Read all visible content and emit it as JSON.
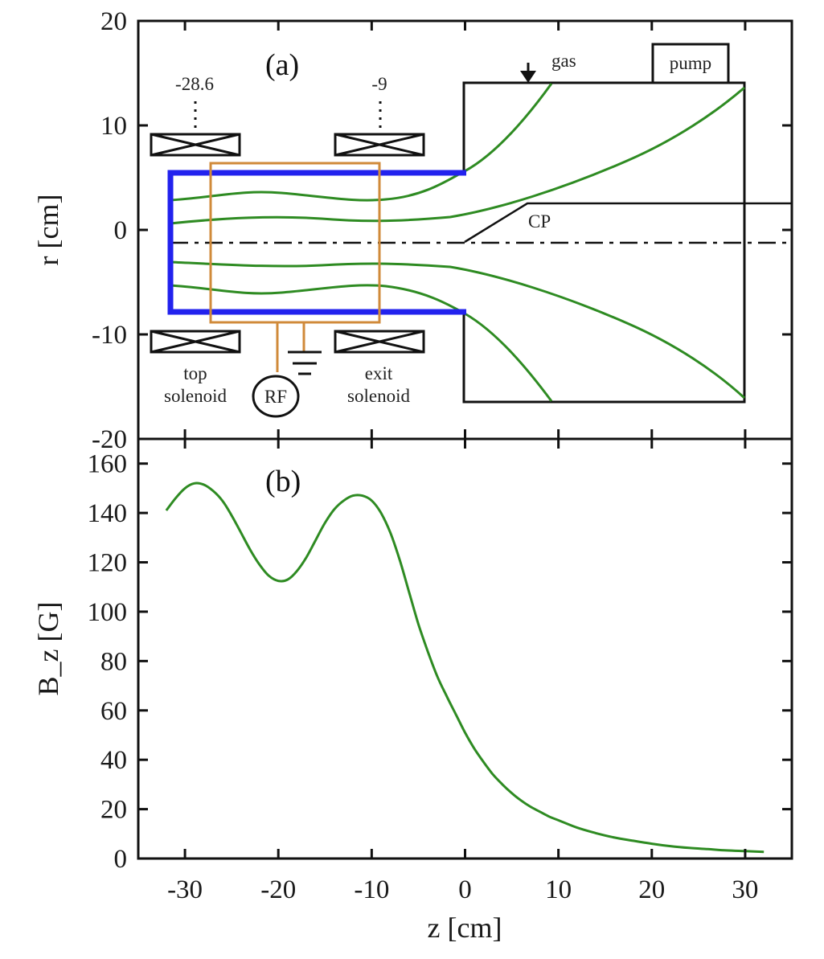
{
  "chart_data": [
    {
      "type": "diagram",
      "panel_label": "(a)",
      "ylabel": "r [cm]",
      "ylim": [
        -20,
        20
      ],
      "yticks": [
        "20",
        "10",
        "0",
        "-10",
        "-20"
      ],
      "annotations": {
        "top_solenoid_position": "-28.6",
        "exit_solenoid_position": "-9",
        "top_solenoid": [
          "top",
          "solenoid"
        ],
        "exit_solenoid": [
          "exit",
          "solenoid"
        ],
        "rf": "RF",
        "gas": "gas",
        "pump": "pump",
        "cp": "CP"
      },
      "colors": {
        "source_tube": "#2222ee",
        "antenna": "#d08a3a",
        "field_lines": "#2e8b22"
      }
    },
    {
      "type": "line",
      "panel_label": "(b)",
      "xlabel": "z [cm]",
      "ylabel": "B_z [G]",
      "xlim": [
        -35,
        35
      ],
      "ylim": [
        0,
        170
      ],
      "xticks": [
        "-30",
        "-20",
        "-10",
        "0",
        "10",
        "20",
        "30"
      ],
      "yticks": [
        "160",
        "140",
        "120",
        "100",
        "80",
        "60",
        "40",
        "20",
        "0"
      ],
      "series": [
        {
          "color": "#2e8b22",
          "x": [
            -32,
            -31,
            -30,
            -29,
            -28,
            -27,
            -26,
            -25,
            -24,
            -23,
            -22,
            -21,
            -20,
            -19,
            -18,
            -17,
            -16,
            -15,
            -14,
            -13,
            -12,
            -11,
            -10,
            -9,
            -8,
            -7,
            -6,
            -5,
            -4,
            -3,
            -2,
            -1,
            0,
            1,
            2,
            3,
            4,
            5,
            6,
            7,
            8,
            9,
            10,
            12,
            14,
            16,
            18,
            20,
            22,
            24,
            26,
            28,
            30,
            32
          ],
          "y": [
            141,
            146,
            150,
            152,
            151.5,
            149,
            145,
            139,
            132,
            125,
            119,
            114.5,
            112.5,
            113,
            116.5,
            122,
            129,
            136,
            141.5,
            145,
            147,
            147,
            145,
            140,
            132,
            121,
            108,
            95,
            84,
            74,
            66,
            58.5,
            51,
            44.5,
            39,
            34,
            30,
            26.5,
            23.5,
            21,
            19,
            17,
            15.5,
            12.5,
            10.3,
            8.5,
            7.2,
            6,
            5,
            4.3,
            3.8,
            3.3,
            3,
            2.7
          ]
        }
      ]
    }
  ]
}
